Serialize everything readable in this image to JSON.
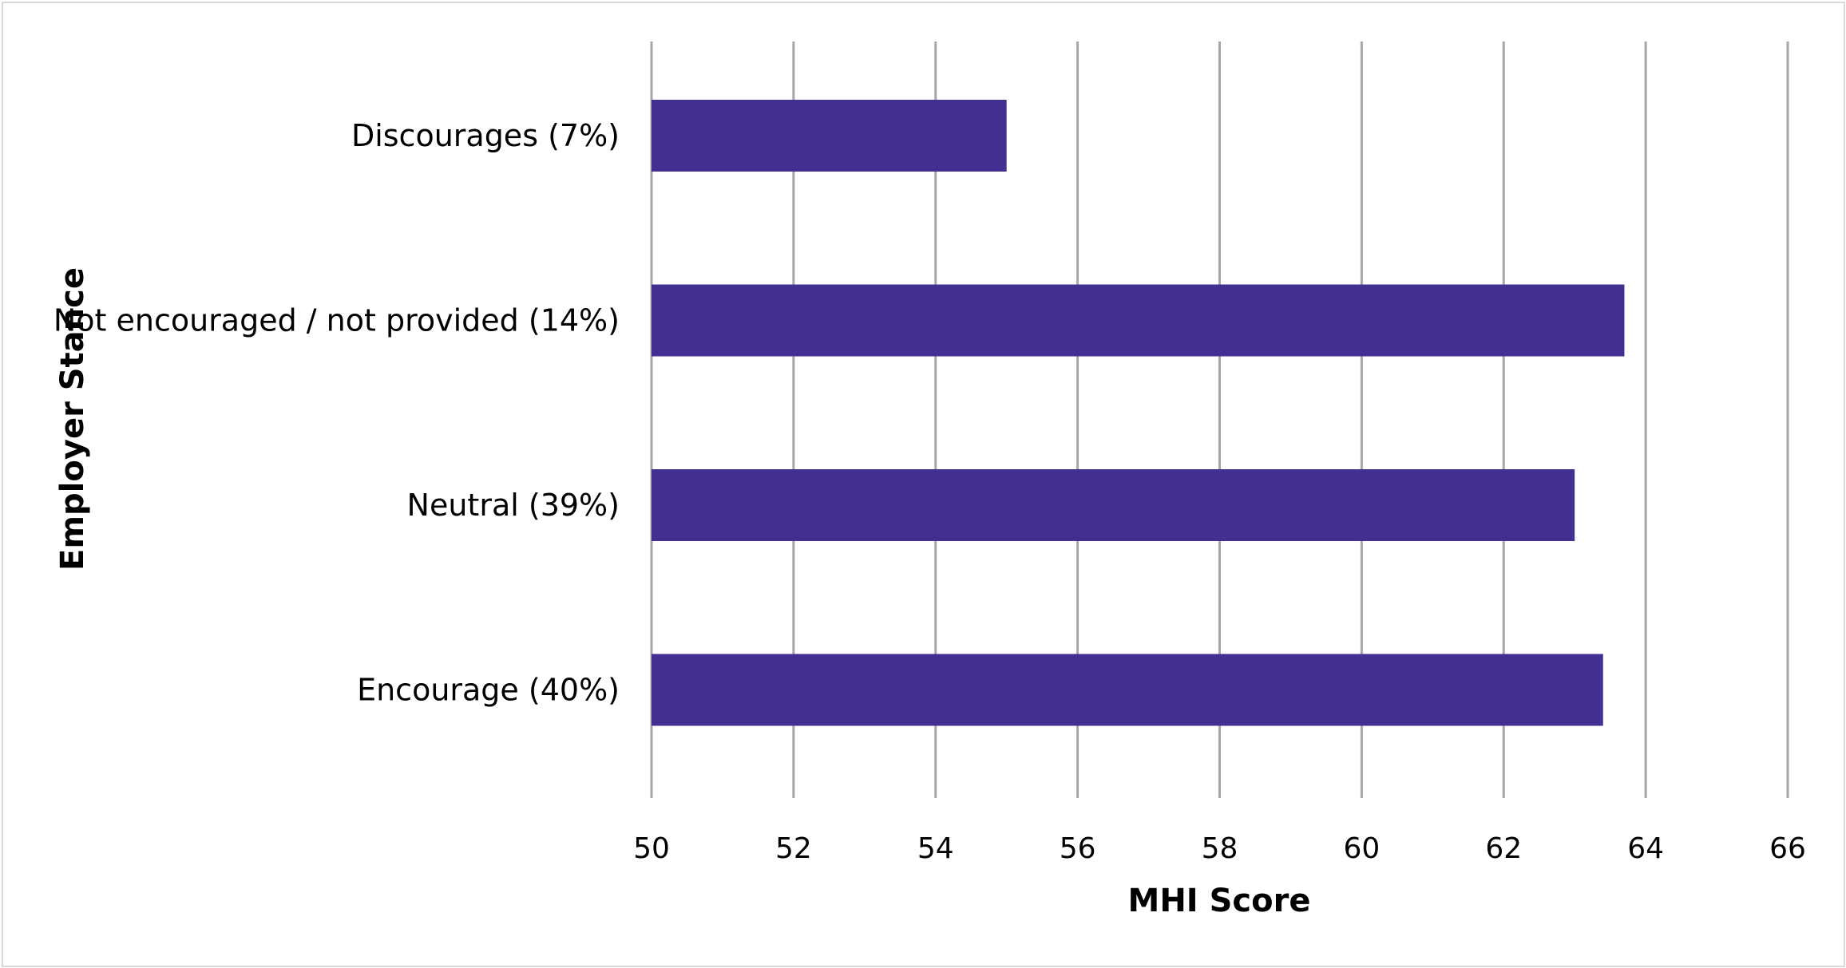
{
  "chart_data": {
    "type": "bar",
    "orientation": "horizontal",
    "categories": [
      "Discourages (7%)",
      "Not encouraged / not provided (14%)",
      "Neutral (39%)",
      "Encourage (40%)"
    ],
    "values": [
      55.0,
      63.7,
      63.0,
      63.4
    ],
    "xlabel": "MHI Score",
    "ylabel": "Employer Stance",
    "xlim": [
      50,
      66
    ],
    "xticks": [
      "50",
      "52",
      "54",
      "56",
      "58",
      "60",
      "62",
      "64",
      "66"
    ],
    "grid": "vertical",
    "bar_color": "#432e91",
    "grid_color": "#a6a6a6"
  }
}
